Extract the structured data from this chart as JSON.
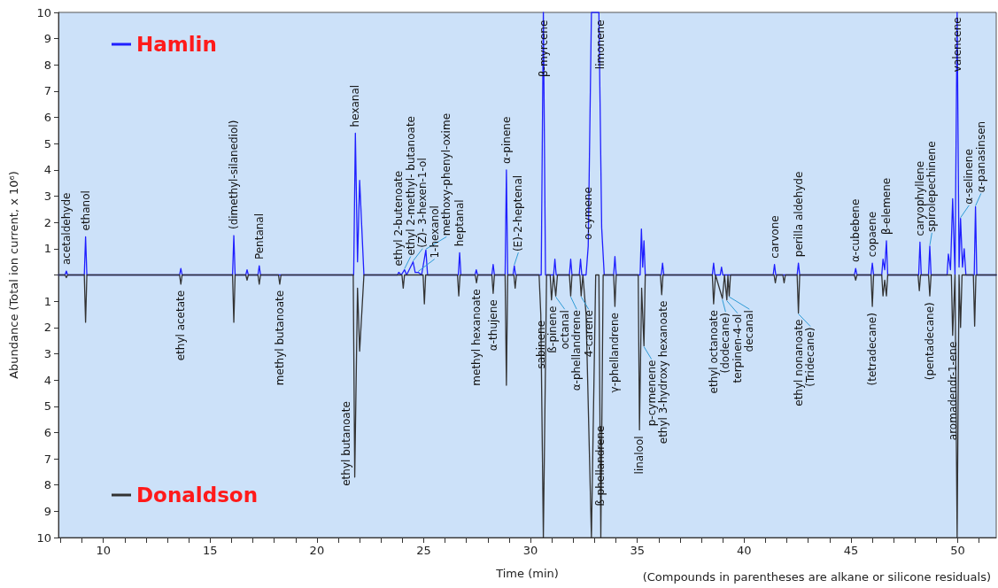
{
  "chart_data": {
    "type": "line",
    "xlabel": "Time (min)",
    "ylabel": "Abundance (Total ion current, x 10⁶)",
    "xlim": [
      7.9,
      51.8
    ],
    "ylim": [
      -10,
      10
    ],
    "xticks": [
      {
        "value": 8,
        "label": null
      },
      {
        "value": 9,
        "label": null
      },
      10,
      {
        "value": 11,
        "label": null
      },
      {
        "value": 12,
        "label": null
      },
      {
        "value": 13,
        "label": null
      },
      {
        "value": 14,
        "label": null
      },
      15,
      {
        "value": 16,
        "label": null
      },
      {
        "value": 17,
        "label": null
      },
      {
        "value": 18,
        "label": null
      },
      {
        "value": 19,
        "label": null
      },
      20,
      {
        "value": 21,
        "label": null
      },
      {
        "value": 22,
        "label": null
      },
      {
        "value": 23,
        "label": null
      },
      {
        "value": 24,
        "label": null
      },
      25,
      {
        "value": 26,
        "label": null
      },
      {
        "value": 27,
        "label": null
      },
      {
        "value": 28,
        "label": null
      },
      {
        "value": 29,
        "label": null
      },
      30,
      {
        "value": 31,
        "label": null
      },
      {
        "value": 32,
        "label": null
      },
      {
        "value": 33,
        "label": null
      },
      {
        "value": 34,
        "label": null
      },
      35,
      {
        "value": 36,
        "label": null
      },
      {
        "value": 37,
        "label": null
      },
      {
        "value": 38,
        "label": null
      },
      {
        "value": 39,
        "label": null
      },
      40,
      {
        "value": 41,
        "label": null
      },
      {
        "value": 42,
        "label": null
      },
      {
        "value": 43,
        "label": null
      },
      {
        "value": 44,
        "label": null
      },
      45,
      {
        "value": 46,
        "label": null
      },
      {
        "value": 47,
        "label": null
      },
      {
        "value": 48,
        "label": null
      },
      {
        "value": 49,
        "label": null
      },
      50,
      {
        "value": 51,
        "label": null
      }
    ],
    "yticks": [
      {
        "value": -10,
        "label": "10"
      },
      {
        "value": -9,
        "label": "9"
      },
      {
        "value": -8,
        "label": "8"
      },
      {
        "value": -7,
        "label": "7"
      },
      {
        "value": -6,
        "label": "6"
      },
      {
        "value": -5,
        "label": "5"
      },
      {
        "value": -4,
        "label": "4"
      },
      {
        "value": -3,
        "label": "3"
      },
      {
        "value": -2,
        "label": "2"
      },
      {
        "value": -1,
        "label": "1"
      },
      {
        "value": 0,
        "label": null
      },
      1,
      2,
      3,
      4,
      5,
      6,
      7,
      8,
      9,
      10
    ],
    "grid": false,
    "legend": "top left",
    "marker": "none",
    "line_style": "solid",
    "series": [
      {
        "name": "Hamlin",
        "color": "#1f1fff",
        "x": [
          7.9,
          8.21,
          8.27,
          8.33,
          9.11,
          9.17,
          9.23,
          13.57,
          13.63,
          13.69,
          16.05,
          16.11,
          16.17,
          16.67,
          16.73,
          16.79,
          17.24,
          17.3,
          17.36,
          21.72,
          21.8,
          21.9,
          22.0,
          22.2,
          23.77,
          23.83,
          23.95,
          24.1,
          24.2,
          24.5,
          24.6,
          24.74,
          24.9,
          25.1,
          25.18,
          26.62,
          26.68,
          26.74,
          27.4,
          27.46,
          27.52,
          28.19,
          28.25,
          28.31,
          28.81,
          28.87,
          28.93,
          29.18,
          29.24,
          29.3,
          30.5,
          30.6,
          30.7,
          31.08,
          31.14,
          31.2,
          31.82,
          31.88,
          31.94,
          32.28,
          32.34,
          32.4,
          32.6,
          32.7,
          32.85,
          33.2,
          33.33,
          33.45,
          33.89,
          33.95,
          34.01,
          35.13,
          35.19,
          35.25,
          35.31,
          35.37,
          36.12,
          36.18,
          36.24,
          38.51,
          38.57,
          38.63,
          38.88,
          38.94,
          39.0,
          41.36,
          41.42,
          41.48,
          42.48,
          42.54,
          42.6,
          45.16,
          45.22,
          45.28,
          45.94,
          46.0,
          46.06,
          46.44,
          46.5,
          46.58,
          46.66,
          46.72,
          48.17,
          48.23,
          48.29,
          48.63,
          48.69,
          48.75,
          49.5,
          49.56,
          49.66,
          49.76,
          49.87,
          49.97,
          50.06,
          50.13,
          50.22,
          50.3,
          50.38,
          50.77,
          50.83,
          50.89,
          51.8
        ],
        "values": [
          0,
          0,
          0.15,
          0,
          0,
          1.45,
          0,
          0,
          0.25,
          0,
          0,
          1.5,
          0,
          0,
          0.2,
          0,
          0,
          0.35,
          0,
          0,
          5.4,
          0.5,
          3.6,
          0,
          0,
          0.1,
          0,
          0.2,
          0,
          0.5,
          0.1,
          0.1,
          0,
          0.95,
          0,
          0,
          0.85,
          0,
          0,
          0.2,
          0,
          0,
          0.4,
          0,
          0,
          4.0,
          0,
          0,
          0.35,
          0,
          0,
          10,
          0,
          0,
          0.6,
          0,
          0,
          0.6,
          0,
          0,
          0.6,
          0,
          0,
          1.1,
          10,
          10,
          1.8,
          0,
          0,
          0.7,
          0,
          0,
          1.75,
          0.3,
          1.3,
          0,
          0,
          0.45,
          0,
          0,
          0.45,
          0,
          0,
          0.3,
          0,
          0,
          0.4,
          0,
          0,
          0.45,
          0,
          0,
          0.25,
          0,
          0,
          0.45,
          0,
          0,
          0.6,
          0.2,
          1.3,
          0,
          0,
          1.25,
          0,
          0,
          1.1,
          0,
          0,
          0.8,
          0.2,
          2.9,
          0,
          10,
          0.3,
          2.15,
          0.3,
          1.0,
          0,
          0,
          2.6,
          0,
          0
        ]
      },
      {
        "name": "Donaldson",
        "color": "#333333",
        "x": [
          7.9,
          8.21,
          8.27,
          8.33,
          9.11,
          9.17,
          9.23,
          13.57,
          13.63,
          13.69,
          16.05,
          16.11,
          16.17,
          16.67,
          16.73,
          16.79,
          17.24,
          17.3,
          17.36,
          18.2,
          18.26,
          18.32,
          21.7,
          21.77,
          21.9,
          22.0,
          22.2,
          23.98,
          24.04,
          24.1,
          24.97,
          25.03,
          25.09,
          26.58,
          26.64,
          26.7,
          27.41,
          27.47,
          27.53,
          28.19,
          28.25,
          28.31,
          28.81,
          28.87,
          28.93,
          29.22,
          29.28,
          29.34,
          30.4,
          30.48,
          30.6,
          30.75,
          30.92,
          30.98,
          31.08,
          31.18,
          31.26,
          31.82,
          31.88,
          31.94,
          32.31,
          32.37,
          32.45,
          32.6,
          32.85,
          33.05,
          33.2,
          33.29,
          33.4,
          33.89,
          33.95,
          34.01,
          35.04,
          35.1,
          35.2,
          35.31,
          35.37,
          36.08,
          36.14,
          36.2,
          38.51,
          38.57,
          38.66,
          38.98,
          39.08,
          39.19,
          39.24,
          39.3,
          39.36,
          41.4,
          41.46,
          41.52,
          41.81,
          41.87,
          41.93,
          42.48,
          42.54,
          42.6,
          45.16,
          45.22,
          45.28,
          45.94,
          46.0,
          46.06,
          46.44,
          46.5,
          46.58,
          46.66,
          46.72,
          48.14,
          48.2,
          48.26,
          48.63,
          48.69,
          48.75,
          49.7,
          49.76,
          49.87,
          49.97,
          50.06,
          50.13,
          50.2,
          50.73,
          50.79,
          50.85,
          51.8
        ],
        "values": [
          0,
          0,
          -0.1,
          0,
          0,
          -1.8,
          0,
          0,
          -0.35,
          0,
          0,
          -1.8,
          0,
          0,
          -0.2,
          0,
          0,
          -0.35,
          0,
          0,
          -0.35,
          0,
          0,
          -7.7,
          -0.5,
          -2.9,
          0,
          0,
          -0.5,
          0,
          0,
          -1.1,
          0,
          0,
          -0.8,
          0,
          0,
          -0.3,
          0,
          0,
          -0.7,
          0,
          0,
          -4.2,
          0,
          0,
          -0.5,
          0,
          0,
          -1.5,
          -10,
          0,
          0,
          -0.95,
          0,
          -0.8,
          0,
          0,
          -0.8,
          0,
          0,
          -0.8,
          0,
          -1.5,
          -10,
          0,
          0,
          -10,
          0,
          0,
          -1.2,
          0,
          0,
          -5.9,
          -0.5,
          -2.7,
          0,
          0,
          -0.75,
          0,
          0,
          -1.1,
          0,
          -0.9,
          0,
          -0.95,
          0,
          -0.8,
          0,
          0,
          -0.3,
          0,
          0,
          -0.3,
          0,
          0,
          -1.45,
          0,
          0,
          -0.2,
          0,
          0,
          -1.2,
          0,
          0,
          -0.8,
          -0.2,
          -0.8,
          0,
          0,
          -0.6,
          0,
          0,
          -0.8,
          0,
          0,
          -2.3,
          0,
          -10,
          0,
          -2.0,
          0,
          0,
          -1.95,
          0,
          0
        ]
      }
    ],
    "annotations": [
      {
        "text": "acetaldehyde",
        "x": 8.27,
        "y": 0.15
      },
      {
        "text": "ethanol",
        "x": 9.17,
        "y": 1.45
      },
      {
        "text": "(dimethyl-silanediol)",
        "x": 16.11,
        "y": 1.5
      },
      {
        "text": "Pentanal",
        "x": 17.3,
        "y": 0.35
      },
      {
        "text": "hexanal",
        "x": 21.8,
        "y": 5.4
      },
      {
        "text": "ethyl 2-butenoate",
        "x": 23.83,
        "y": 0.1
      },
      {
        "text": "ethyl 2-methyl- butanoate",
        "x": 24.1,
        "y": 0.2
      },
      {
        "text": "(Z)- 3-hexen-1-ol",
        "x": 24.5,
        "y": 0.5
      },
      {
        "text": "1-hexanol",
        "x": 24.74,
        "y": 0.1
      },
      {
        "text": "methoxy-phenyl-oxime",
        "x": 25.1,
        "y": 0.95
      },
      {
        "text": "heptanal",
        "x": 26.68,
        "y": 0.85
      },
      {
        "text": "α-pinene",
        "x": 28.87,
        "y": 4.0
      },
      {
        "text": "(E)-2-heptenal",
        "x": 29.24,
        "y": 0.35
      },
      {
        "text": "β-myrcene",
        "x": 30.6,
        "y": 7.3
      },
      {
        "text": "o-cymene",
        "x": 32.7,
        "y": 1.1
      },
      {
        "text": "limonene",
        "x": 33.2,
        "y": 7.6
      },
      {
        "text": "carvone",
        "x": 41.42,
        "y": 0.4
      },
      {
        "text": "perilla aldehyde",
        "x": 42.54,
        "y": 0.45
      },
      {
        "text": "α-cubebene",
        "x": 45.22,
        "y": 0.25
      },
      {
        "text": "copaene",
        "x": 46.0,
        "y": 0.45
      },
      {
        "text": "β-elemene",
        "x": 46.66,
        "y": 1.3
      },
      {
        "text": "caryophyllene",
        "x": 48.23,
        "y": 1.25
      },
      {
        "text": "spirolepechinene",
        "x": 48.69,
        "y": 1.1
      },
      {
        "text": "valencene",
        "x": 49.97,
        "y": 7.5
      },
      {
        "text": "α-selinene",
        "x": 50.13,
        "y": 2.15
      },
      {
        "text": "α-panasinsen",
        "x": 50.83,
        "y": 2.6
      },
      {
        "text": "ethyl acetate",
        "x": 13.63,
        "y": -0.35
      },
      {
        "text": "methyl butanoate",
        "x": 18.26,
        "y": -0.35
      },
      {
        "text": "ethyl butanoate",
        "x": 21.77,
        "y": -7.7
      },
      {
        "text": "methyl hexanoate",
        "x": 27.47,
        "y": -0.3
      },
      {
        "text": "α-thujene",
        "x": 28.25,
        "y": -0.7
      },
      {
        "text": "sabinene",
        "x": 30.48,
        "y": -1.5
      },
      {
        "text": "ß-pinene",
        "x": 30.98,
        "y": -0.95
      },
      {
        "text": "octanal",
        "x": 31.18,
        "y": -0.8
      },
      {
        "text": "α-phellandrene",
        "x": 31.88,
        "y": -0.8
      },
      {
        "text": "4-carene",
        "x": 32.37,
        "y": -0.8
      },
      {
        "text": "ß-phellandrene",
        "x": 33.29,
        "y": -5.5
      },
      {
        "text": "γ-phellandrene",
        "x": 33.95,
        "y": -1.2
      },
      {
        "text": "linalool",
        "x": 35.1,
        "y": -5.9
      },
      {
        "text": "p-cymenene",
        "x": 35.31,
        "y": -2.7
      },
      {
        "text": "ethyl 3-hydroxy hexanoate",
        "x": 36.14,
        "y": -0.75
      },
      {
        "text": "ethyl octanoate",
        "x": 38.57,
        "y": -1.1
      },
      {
        "text": "(dodecane)",
        "x": 38.98,
        "y": -0.9
      },
      {
        "text": "terpinen-4-ol",
        "x": 39.19,
        "y": -0.95
      },
      {
        "text": "decanal",
        "x": 39.3,
        "y": -0.8
      },
      {
        "text": "ethyl nonanoate",
        "x": 42.54,
        "y": -1.45
      },
      {
        "text": "(Tridecane)",
        "x": 42.54,
        "y": -1.45
      },
      {
        "text": "(tetradecane)",
        "x": 46.0,
        "y": -1.2
      },
      {
        "text": "(pentadecane)",
        "x": 48.69,
        "y": -0.8
      },
      {
        "text": "aromadendr-1-ene",
        "x": 49.76,
        "y": -2.3
      },
      "(Compounds in parentheses are alkane or silicone residuals)"
    ]
  }
}
